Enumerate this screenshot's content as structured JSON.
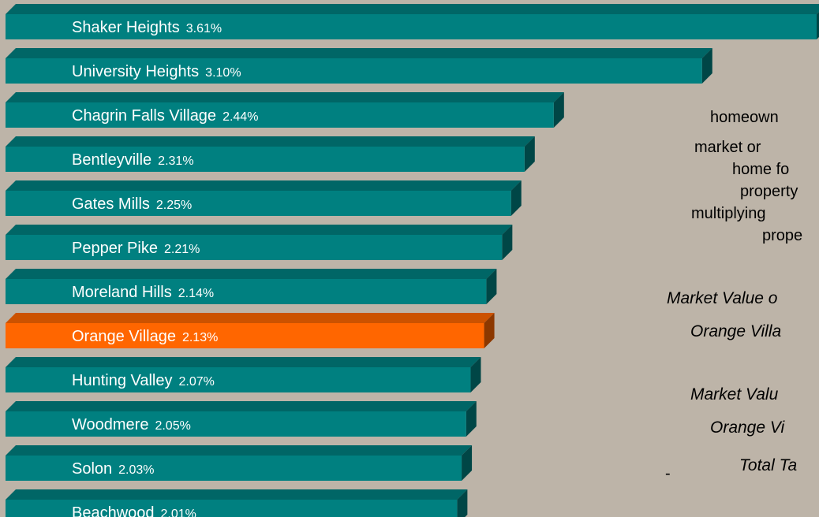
{
  "chart_data": {
    "type": "bar",
    "categories": [
      "Shaker Heights",
      "University Heights",
      "Chagrin Falls Village",
      "Bentleyville",
      "Gates Mills",
      "Pepper Pike",
      "Moreland Hills",
      "Orange Village",
      "Hunting Valley",
      "Woodmere",
      "Solon",
      "Beachwood"
    ],
    "values": [
      3.61,
      3.1,
      2.44,
      2.31,
      2.25,
      2.21,
      2.14,
      2.13,
      2.07,
      2.05,
      2.03,
      2.01
    ],
    "value_labels": [
      "3.61%",
      "3.10%",
      "2.44%",
      "2.31%",
      "2.25%",
      "2.21%",
      "2.14%",
      "2.13%",
      "2.07%",
      "2.05%",
      "2.03%",
      "2.01%"
    ],
    "colors": [
      "#008080",
      "#008080",
      "#008080",
      "#008080",
      "#008080",
      "#008080",
      "#008080",
      "#ff6600",
      "#008080",
      "#008080",
      "#008080",
      "#008080"
    ],
    "annotations": [
      {
        "text": "homeown",
        "italic": false
      },
      {
        "text": "market or",
        "italic": false
      },
      {
        "text": "home fo",
        "italic": false
      },
      {
        "text": "property",
        "italic": false
      },
      {
        "text": "multiplying",
        "italic": false
      },
      {
        "text": "prope",
        "italic": false
      },
      {
        "text": "Market Value o",
        "italic": true
      },
      {
        "text": "Orange Villa",
        "italic": true
      },
      {
        "text": "Market Valu",
        "italic": true
      },
      {
        "text": "Orange Vi",
        "italic": true
      },
      {
        "text": "Total Ta",
        "italic": true
      },
      {
        "text": "-",
        "italic": false
      }
    ]
  }
}
